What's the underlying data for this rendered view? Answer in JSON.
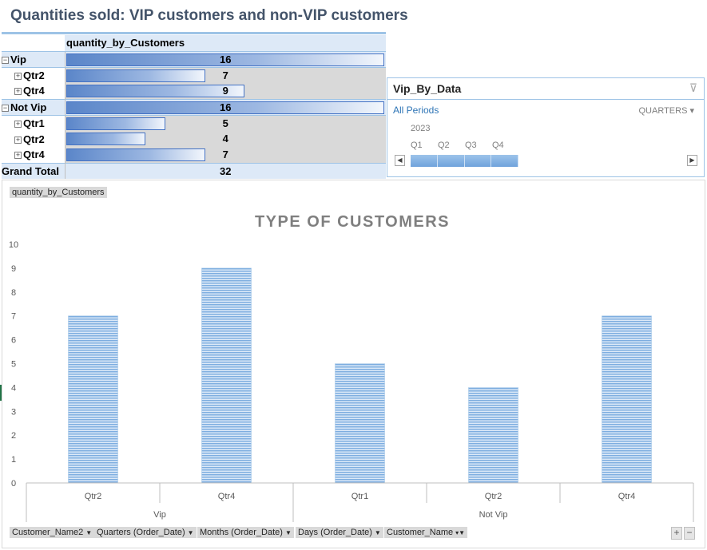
{
  "title": "Quantities sold: VIP customers and non-VIP customers",
  "pivot": {
    "header": "quantity_by_Customers",
    "max": 16,
    "rows": [
      {
        "label": "Vip",
        "value": "16",
        "v": 16,
        "level": 1,
        "expander": "−"
      },
      {
        "label": "Qtr2",
        "value": "7",
        "v": 7,
        "level": 2,
        "expander": "+"
      },
      {
        "label": "Qtr4",
        "value": "9",
        "v": 9,
        "level": 2,
        "expander": "+"
      },
      {
        "label": "Not Vip",
        "value": "16",
        "v": 16,
        "level": 1,
        "expander": "−"
      },
      {
        "label": "Qtr1",
        "value": "5",
        "v": 5,
        "level": 2,
        "expander": "+"
      },
      {
        "label": "Qtr2",
        "value": "4",
        "v": 4,
        "level": 2,
        "expander": "+"
      },
      {
        "label": "Qtr4",
        "value": "7",
        "v": 7,
        "level": 2,
        "expander": "+"
      }
    ],
    "grand_total_label": "Grand Total",
    "grand_total_value": "32"
  },
  "timeline": {
    "title": "Vip_By_Data",
    "all_periods": "All Periods",
    "level": "QUARTERS",
    "year": "2023",
    "quarters": [
      "Q1",
      "Q2",
      "Q3",
      "Q4"
    ]
  },
  "chart": {
    "value_field_button": "quantity_by_Customers",
    "title": "TYPE OF CUSTOMERS",
    "y_ticks": [
      "0",
      "1",
      "2",
      "3",
      "4",
      "5",
      "6",
      "7",
      "8",
      "9",
      "10"
    ],
    "field_buttons": [
      "Customer_Name2",
      "Quarters (Order_Date)",
      "Months (Order_Date)",
      "Days (Order_Date)",
      "Customer_Name"
    ],
    "zoom_in": "+",
    "zoom_out": "−"
  },
  "chart_data": {
    "type": "bar",
    "title": "TYPE OF CUSTOMERS",
    "categories": [
      "Qtr2",
      "Qtr4",
      "Qtr1",
      "Qtr2",
      "Qtr4"
    ],
    "groups": [
      {
        "name": "Vip",
        "categories": [
          "Qtr2",
          "Qtr4"
        ]
      },
      {
        "name": "Not Vip",
        "categories": [
          "Qtr1",
          "Qtr2",
          "Qtr4"
        ]
      }
    ],
    "values": [
      7,
      9,
      5,
      4,
      7
    ],
    "xlabel": "",
    "ylabel": "",
    "ylim": [
      0,
      10
    ],
    "grid": false,
    "bar_color": "#9dc3e6"
  }
}
